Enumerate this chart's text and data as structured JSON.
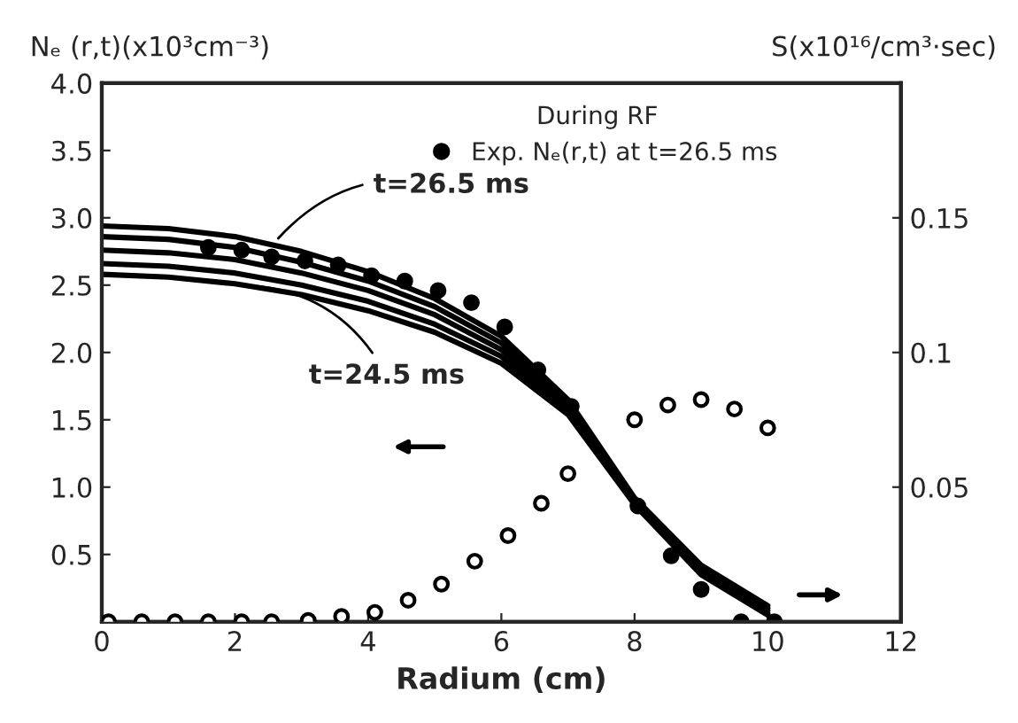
{
  "chart_data": {
    "type": "line",
    "xlabel": "Radium (cm)",
    "ylabel": "Nₑ (r,t)(x10³cm⁻³)",
    "y2label": "S(x10¹⁶/cm³·sec)",
    "legend_title": "During RF",
    "legend": "top",
    "x": [
      0,
      1,
      2,
      3,
      4,
      5,
      6,
      7,
      8,
      9,
      10
    ],
    "series": [
      {
        "color": "#000000",
        "values": [
          2.94,
          2.92,
          2.86,
          2.75,
          2.6,
          2.4,
          2.12,
          1.65,
          0.92,
          0.42,
          0.12
        ]
      },
      {
        "color": "#000000",
        "values": [
          2.86,
          2.84,
          2.78,
          2.67,
          2.53,
          2.34,
          2.07,
          1.62,
          0.9,
          0.4,
          0.1
        ]
      },
      {
        "color": "#000000",
        "values": [
          2.76,
          2.74,
          2.69,
          2.59,
          2.46,
          2.28,
          2.02,
          1.59,
          0.89,
          0.38,
          0.08
        ]
      },
      {
        "color": "#000000",
        "values": [
          2.66,
          2.64,
          2.59,
          2.5,
          2.38,
          2.21,
          1.97,
          1.56,
          0.88,
          0.36,
          0.06
        ]
      },
      {
        "color": "#000000",
        "values": [
          2.58,
          2.56,
          2.51,
          2.43,
          2.31,
          2.15,
          1.92,
          1.54,
          0.87,
          0.35,
          0.05
        ]
      },
      {
        "type": "scatter",
        "name": "Exp. Nₑ(r,t) at t=26.5 ms",
        "color": "#000000",
        "marker": "circle",
        "x": [
          1.6,
          2.1,
          2.55,
          3.05,
          3.55,
          4.05,
          4.55,
          5.05,
          5.55,
          6.05,
          6.55,
          7.05,
          8.05,
          8.55,
          9.0,
          9.6,
          10.1
        ],
        "values": [
          2.78,
          2.76,
          2.71,
          2.68,
          2.65,
          2.57,
          2.53,
          2.46,
          2.37,
          2.19,
          1.87,
          1.6,
          0.86,
          0.49,
          0.24,
          0,
          0
        ]
      },
      {
        "type": "scatter",
        "axis": "y2",
        "color": "#ffffff",
        "marker": "circle",
        "x": [
          0.1,
          0.6,
          1.1,
          1.6,
          2.1,
          2.55,
          3.1,
          3.6,
          4.1,
          4.6,
          5.1,
          5.6,
          6.1,
          6.6,
          7.0,
          8.0,
          8.5,
          9.0,
          9.5,
          10.0
        ],
        "values": [
          0,
          0,
          0,
          0,
          0,
          0,
          0.0005,
          0.002,
          0.0035,
          0.008,
          0.014,
          0.0225,
          0.032,
          0.044,
          0.055,
          0.075,
          0.0805,
          0.0825,
          0.079,
          0.072
        ]
      }
    ],
    "xlim": [
      0,
      12
    ],
    "xticks": [
      0,
      2,
      4,
      6,
      8,
      10,
      12
    ],
    "ylim": [
      0,
      4
    ],
    "yticks": [
      0.5,
      {
        "value": 1,
        "label": "1.0"
      },
      1.5,
      {
        "value": 2,
        "label": "2.0"
      },
      2.5,
      {
        "value": 3,
        "label": "3.0"
      },
      3.5,
      {
        "value": 4,
        "label": "4.0"
      }
    ],
    "y2lim": [
      0,
      0.2
    ],
    "y2ticks": [
      0.05,
      0.1,
      0.15
    ],
    "grid": false,
    "annotations": [
      {
        "text": "t=26.5 ms",
        "x": 2.6,
        "y": 2.82
      },
      {
        "text": "t=24.5 ms",
        "x": 2.0,
        "y": 2.5
      }
    ]
  }
}
